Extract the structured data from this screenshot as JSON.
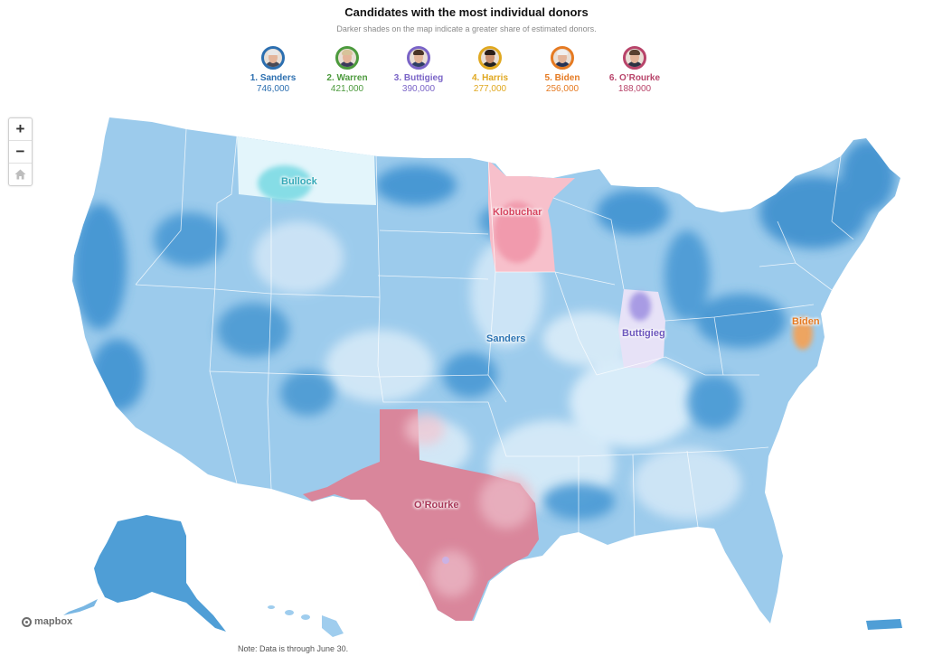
{
  "header": {
    "title": "Candidates with the most individual donors",
    "subtitle": "Darker shades on the map indicate a greater share of estimated donors."
  },
  "candidates": [
    {
      "label": "1. Sanders",
      "donors": "746,000",
      "color": "#2c6fb0",
      "icon": "sanders-portrait-icon"
    },
    {
      "label": "2. Warren",
      "donors": "421,000",
      "color": "#4c9a3d",
      "icon": "warren-portrait-icon"
    },
    {
      "label": "3. Buttigieg",
      "donors": "390,000",
      "color": "#7a64c7",
      "icon": "buttigieg-portrait-icon"
    },
    {
      "label": "4. Harris",
      "donors": "277,000",
      "color": "#e0a820",
      "icon": "harris-portrait-icon"
    },
    {
      "label": "5. Biden",
      "donors": "256,000",
      "color": "#e57a22",
      "icon": "biden-portrait-icon"
    },
    {
      "label": "6. O’Rourke",
      "donors": "188,000",
      "color": "#b8446a",
      "icon": "orourke-portrait-icon"
    }
  ],
  "map": {
    "labels": {
      "bullock": "Bullock",
      "klobuchar": "Klobuchar",
      "sanders": "Sanders",
      "buttigieg": "Buttigieg",
      "biden": "Biden",
      "orourke": "O’Rourke"
    },
    "colors": {
      "sanders_dark": "#4b9ad3",
      "sanders_mid": "#8fc2e8",
      "sanders_light": "#cfe5f6",
      "bullock": "#86dde6",
      "klobuchar": "#f3a0b1",
      "buttigieg": "#a89be4",
      "biden": "#f2a35a",
      "orourke": "#d9869b"
    }
  },
  "controls": {
    "zoom_in": "+",
    "zoom_out": "−",
    "home_icon": "home-icon"
  },
  "attribution": "mapbox",
  "note": "Note: Data is through June 30."
}
